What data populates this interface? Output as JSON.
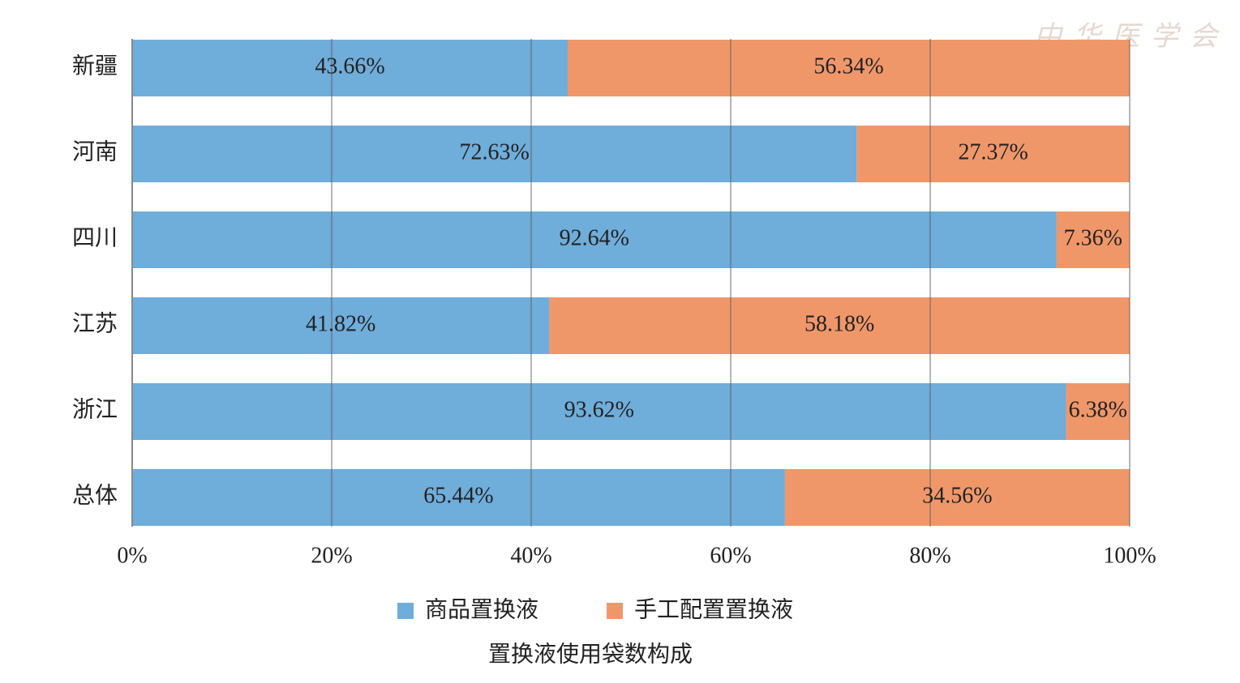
{
  "chart_data": {
    "type": "stacked-bar-horizontal",
    "title": "置换液使用袋数构成",
    "watermark": "中华医学会",
    "categories": [
      "新疆",
      "河南",
      "四川",
      "江苏",
      "浙江",
      "总体"
    ],
    "series": [
      {
        "name": "商品置换液",
        "color": "#6fadda",
        "values": [
          43.66,
          72.63,
          92.64,
          41.82,
          93.62,
          65.44
        ],
        "value_labels": [
          "43.66%",
          "72.63%",
          "92.64%",
          "41.82%",
          "93.62%",
          "65.44%"
        ]
      },
      {
        "name": "手工配置置换液",
        "color": "#f0976a",
        "values": [
          56.34,
          27.37,
          7.36,
          58.18,
          6.38,
          34.56
        ],
        "value_labels": [
          "56.34%",
          "27.37%",
          "7.36%",
          "58.18%",
          "6.38%",
          "34.56%"
        ]
      }
    ],
    "xlim": [
      0,
      100
    ],
    "xticks": [
      {
        "value": 0,
        "label": "0%"
      },
      {
        "value": 20,
        "label": "20%"
      },
      {
        "value": 40,
        "label": "40%"
      },
      {
        "value": 60,
        "label": "60%"
      },
      {
        "value": 80,
        "label": "80%"
      },
      {
        "value": 100,
        "label": "100%"
      }
    ],
    "grid": true
  }
}
